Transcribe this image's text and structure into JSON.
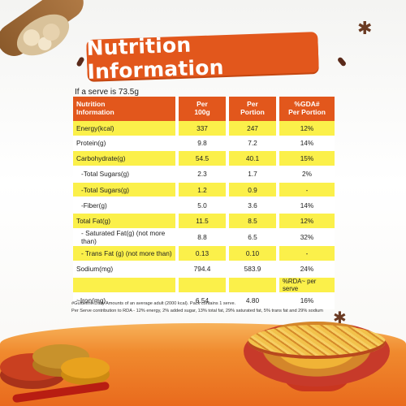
{
  "title": "Nutrition Information",
  "serve_note": "If a serve is 73.5g",
  "headers": {
    "nutrition": "Nutrition\nInformation",
    "per100": "Per\n100g",
    "portion": "Per\nPortion",
    "gda": "%GDA#\nPer Portion"
  },
  "rows": [
    {
      "name": "Energy(kcal)",
      "per100": "337",
      "portion": "247",
      "gda": "12%"
    },
    {
      "name": "Protein(g)",
      "per100": "9.8",
      "portion": "7.2",
      "gda": "14%"
    },
    {
      "name": "Carbohydrate(g)",
      "per100": "54.5",
      "portion": "40.1",
      "gda": "15%"
    },
    {
      "name": "-Total Sugars(g)",
      "per100": "2.3",
      "portion": "1.7",
      "gda": "2%"
    },
    {
      "name": "-Total Sugars(g)",
      "per100": "1.2",
      "portion": "0.9",
      "gda": "-"
    },
    {
      "name": "-Fiber(g)",
      "per100": "5.0",
      "portion": "3.6",
      "gda": "14%"
    },
    {
      "name": "Total Fat(g)",
      "per100": "11.5",
      "portion": "8.5",
      "gda": "12%"
    },
    {
      "name": "- Saturated Fat(g) (not more than)",
      "per100": "8.8",
      "portion": "6.5",
      "gda": "32%"
    },
    {
      "name": "- Trans Fat (g) (not more than)",
      "per100": "0.13",
      "portion": "0.10",
      "gda": "-"
    },
    {
      "name": "Sodium(mg)",
      "per100": "794.4",
      "portion": "583.9",
      "gda": "24%"
    },
    {
      "name": "",
      "per100": "",
      "portion": "",
      "gda": "%RDA~ per serve"
    },
    {
      "name": "~Iron(mg)",
      "per100": "6.54",
      "portion": "4.80",
      "gda": "16%"
    }
  ],
  "footnotes": {
    "line1": "#Guideline Daily Amounts of an average adult (2000 kcal). Pack contains 1 serve.",
    "line2": "Per Serve contribution to RDA - 12% energy, 2% added sugar, 13% total fat, 29% saturated fat, 5% trans fat and 29% sodium"
  },
  "colors": {
    "accent": "#e2571c",
    "highlight": "#fbf04a"
  }
}
